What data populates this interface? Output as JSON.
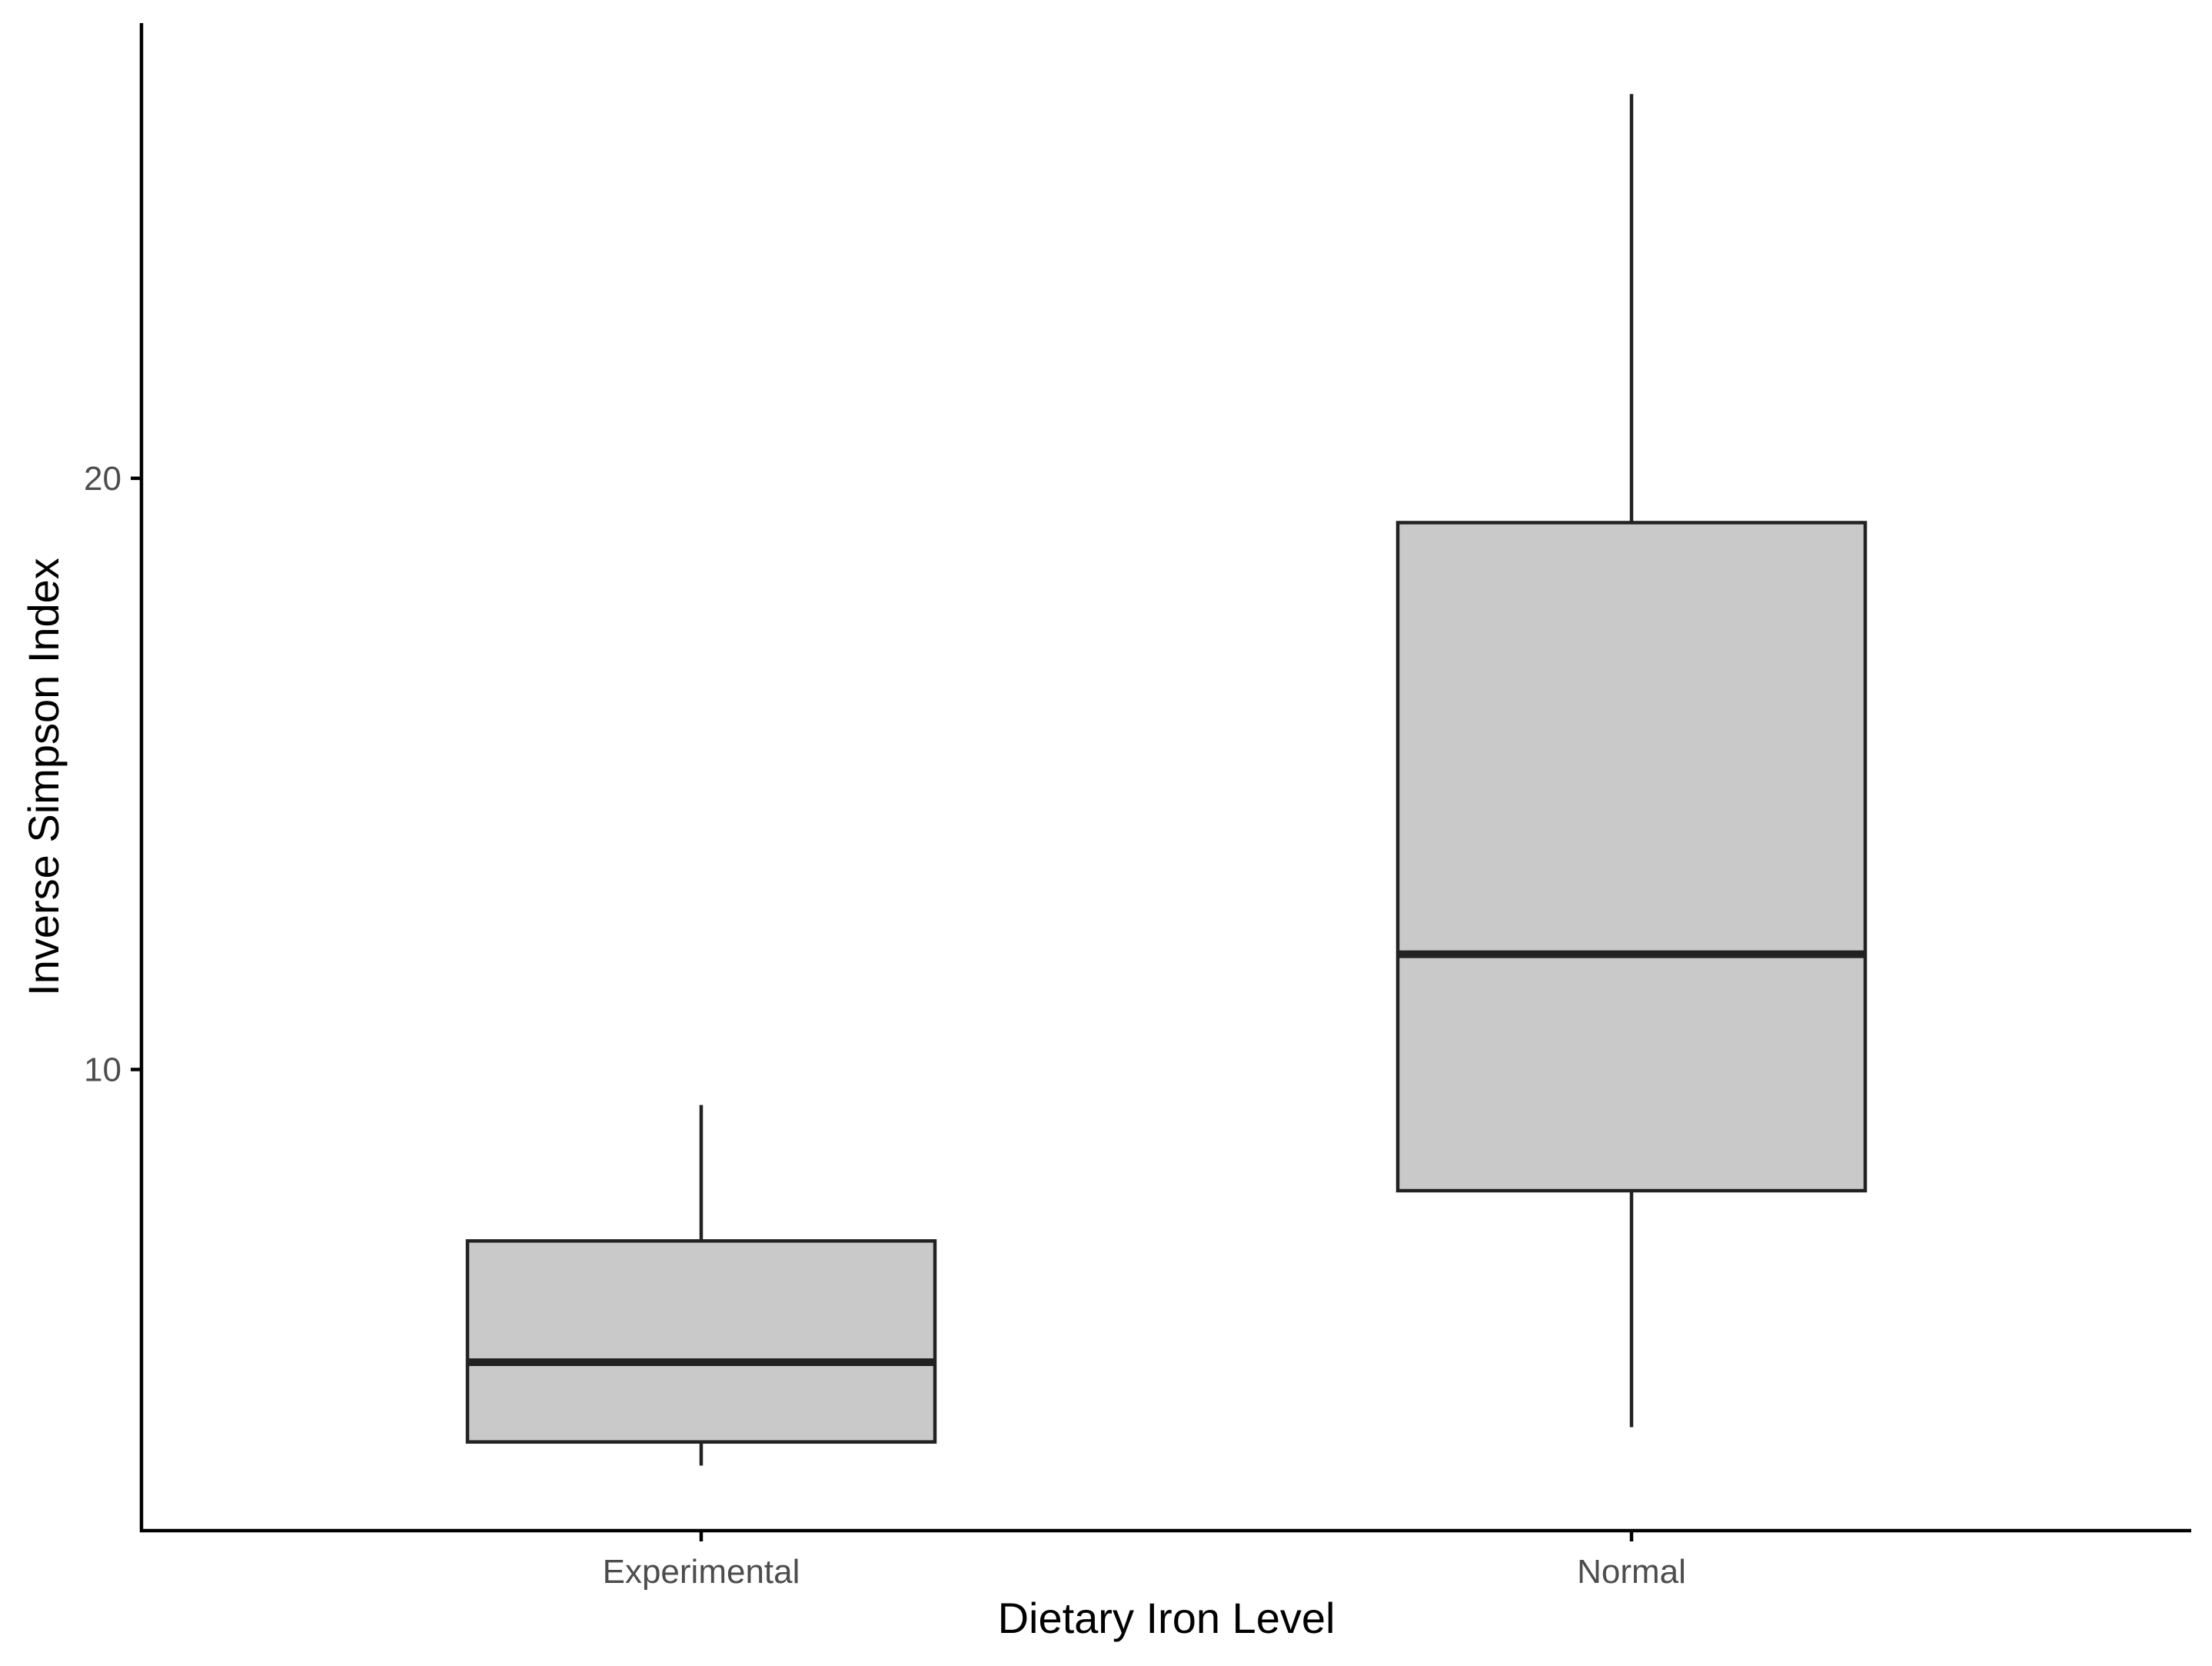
{
  "chart_data": {
    "type": "box",
    "title": "",
    "xlabel": "Dietary Iron Level",
    "ylabel": "Inverse Simpson Index",
    "ylim": [
      2.2,
      27.7
    ],
    "yticks": [
      10,
      20
    ],
    "grid": false,
    "legend": "none",
    "categories": [
      "Experimental",
      "Normal"
    ],
    "boxes": [
      {
        "category": "Experimental",
        "whisker_low": 3.3,
        "q1": 3.7,
        "median": 5.05,
        "q3": 7.1,
        "whisker_high": 9.4
      },
      {
        "category": "Normal",
        "whisker_low": 3.95,
        "q1": 7.95,
        "median": 11.95,
        "q3": 19.25,
        "whisker_high": 26.5
      }
    ],
    "colors": {
      "box_fill": "#c9c9c9",
      "box_stroke": "#222222",
      "axis": "#000000",
      "tick_label": "#4d4d4d",
      "axis_title": "#000000"
    }
  }
}
